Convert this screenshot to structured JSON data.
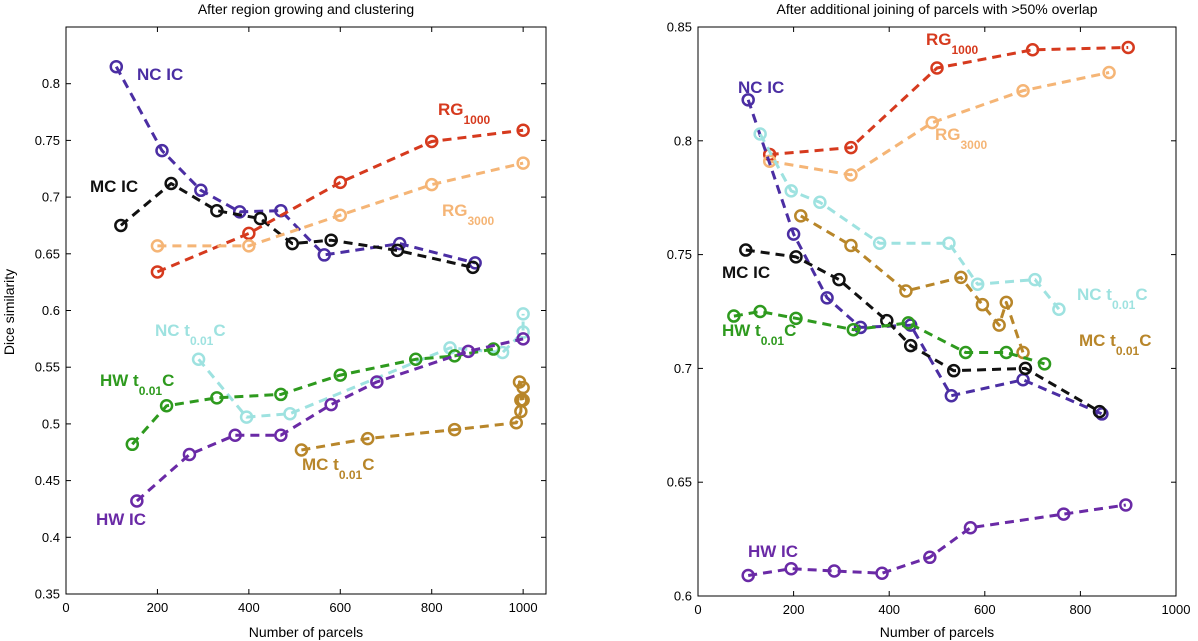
{
  "chart_data": [
    {
      "type": "line",
      "title": "After region growing and clustering",
      "xlabel": "Number of parcels",
      "ylabel": "Dice similarity",
      "xlim": [
        0,
        1050
      ],
      "ylim": [
        0.35,
        0.85
      ],
      "xticks": [
        0,
        200,
        400,
        600,
        800,
        1000
      ],
      "xtick_labels": [
        "0",
        "200",
        "400",
        "600",
        "800",
        "1000"
      ],
      "yticks": [
        0.35,
        0.4,
        0.45,
        0.5,
        0.55,
        0.6,
        0.65,
        0.7,
        0.75,
        0.8
      ],
      "ytick_labels": [
        "0.35",
        "0.4",
        "0.45",
        "0.5",
        "0.55",
        "0.6",
        "0.65",
        "0.7",
        "0.75",
        "0.8"
      ],
      "series": [
        {
          "name": "NC IC",
          "label_main": "NC IC",
          "label_sub": "",
          "label_tail": "",
          "color": "#4b2ea3",
          "x": [
            110,
            210,
            295,
            380,
            470,
            565,
            730,
            895
          ],
          "y": [
            0.815,
            0.741,
            0.706,
            0.687,
            0.688,
            0.649,
            0.659,
            0.642
          ]
        },
        {
          "name": "MC IC",
          "label_main": "MC IC",
          "label_sub": "",
          "label_tail": "",
          "color": "#111111",
          "x": [
            120,
            230,
            330,
            425,
            495,
            580,
            725,
            890
          ],
          "y": [
            0.675,
            0.712,
            0.688,
            0.681,
            0.659,
            0.662,
            0.653,
            0.638
          ]
        },
        {
          "name": "RG1000",
          "label_main": "RG",
          "label_sub": "1000",
          "label_tail": "",
          "color": "#d63a1e",
          "x": [
            200,
            400,
            600,
            800,
            1000
          ],
          "y": [
            0.634,
            0.668,
            0.713,
            0.749,
            0.759
          ]
        },
        {
          "name": "RG3000",
          "label_main": "RG",
          "label_sub": "3000",
          "label_tail": "",
          "color": "#f5b576",
          "x": [
            200,
            400,
            600,
            800,
            1000
          ],
          "y": [
            0.657,
            0.657,
            0.684,
            0.711,
            0.73
          ]
        },
        {
          "name": "NC t0.01C",
          "label_main": "NC t",
          "label_sub": "0.01",
          "label_tail": "C",
          "color": "#9ee2e0",
          "x": [
            290,
            395,
            490,
            840,
            955,
            1000,
            1000
          ],
          "y": [
            0.557,
            0.506,
            0.509,
            0.567,
            0.563,
            0.581,
            0.597
          ]
        },
        {
          "name": "HW t0.01C",
          "label_main": "HW t",
          "label_sub": "0.01",
          "label_tail": "C",
          "color": "#2e9a1e",
          "x": [
            145,
            220,
            330,
            470,
            600,
            765,
            850,
            935
          ],
          "y": [
            0.482,
            0.516,
            0.523,
            0.526,
            0.543,
            0.557,
            0.56,
            0.566
          ]
        },
        {
          "name": "HW IC",
          "label_main": "HW IC",
          "label_sub": "",
          "label_tail": "",
          "color": "#6a2aa6",
          "x": [
            155,
            270,
            370,
            470,
            580,
            680,
            880,
            1000
          ],
          "y": [
            0.432,
            0.473,
            0.49,
            0.49,
            0.517,
            0.537,
            0.564,
            0.575
          ]
        },
        {
          "name": "MC t0.01C",
          "label_main": "MC t",
          "label_sub": "0.01",
          "label_tail": "C",
          "color": "#b8862a",
          "x": [
            515,
            660,
            850,
            985,
            995,
            995,
            1000,
            992,
            1000
          ],
          "y": [
            0.477,
            0.487,
            0.495,
            0.501,
            0.511,
            0.521,
            0.532,
            0.537,
            0.521
          ]
        }
      ]
    },
    {
      "type": "line",
      "title": "After additional joining of parcels with >50% overlap",
      "xlabel": "Number of parcels",
      "ylabel": "",
      "xlim": [
        0,
        1000
      ],
      "ylim": [
        0.6,
        0.85
      ],
      "xticks": [
        0,
        200,
        400,
        600,
        800,
        1000
      ],
      "xtick_labels": [
        "0",
        "200",
        "400",
        "600",
        "800",
        "1000"
      ],
      "yticks": [
        0.6,
        0.65,
        0.7,
        0.75,
        0.8,
        0.85
      ],
      "ytick_labels": [
        "0.6",
        "0.65",
        "0.7",
        "0.75",
        "0.8",
        "0.85"
      ],
      "series": [
        {
          "name": "RG1000",
          "label_main": "RG",
          "label_sub": "1000",
          "label_tail": "",
          "color": "#d63a1e",
          "x": [
            150,
            320,
            500,
            700,
            900
          ],
          "y": [
            0.794,
            0.797,
            0.832,
            0.84,
            0.841
          ]
        },
        {
          "name": "RG3000",
          "label_main": "RG",
          "label_sub": "3000",
          "label_tail": "",
          "color": "#f5b576",
          "x": [
            150,
            320,
            490,
            680,
            860
          ],
          "y": [
            0.791,
            0.785,
            0.808,
            0.822,
            0.83
          ]
        },
        {
          "name": "NC IC",
          "label_main": "NC IC",
          "label_sub": "",
          "label_tail": "",
          "color": "#4b2ea3",
          "x": [
            105,
            200,
            270,
            340,
            445,
            530,
            680,
            845
          ],
          "y": [
            0.818,
            0.759,
            0.731,
            0.718,
            0.719,
            0.688,
            0.695,
            0.68
          ]
        },
        {
          "name": "NC t0.01C",
          "label_main": "NC t",
          "label_sub": "0.01",
          "label_tail": "C",
          "color": "#9ee2e0",
          "x": [
            130,
            195,
            255,
            380,
            525,
            585,
            705,
            755
          ],
          "y": [
            0.803,
            0.778,
            0.773,
            0.755,
            0.755,
            0.737,
            0.739,
            0.726
          ]
        },
        {
          "name": "MC IC",
          "label_main": "MC IC",
          "label_sub": "",
          "label_tail": "",
          "color": "#111111",
          "x": [
            100,
            205,
            295,
            395,
            445,
            535,
            685,
            840
          ],
          "y": [
            0.752,
            0.749,
            0.739,
            0.721,
            0.71,
            0.699,
            0.7,
            0.681
          ]
        },
        {
          "name": "MC t0.01C",
          "label_main": "MC t",
          "label_sub": "0.01",
          "label_tail": "C",
          "color": "#b8862a",
          "x": [
            215,
            320,
            435,
            550,
            595,
            630,
            645,
            680
          ],
          "y": [
            0.767,
            0.754,
            0.734,
            0.74,
            0.728,
            0.719,
            0.729,
            0.707
          ]
        },
        {
          "name": "HW t0.01C",
          "label_main": "HW t",
          "label_sub": "0.01",
          "label_tail": "C",
          "color": "#2e9a1e",
          "x": [
            75,
            130,
            205,
            325,
            440,
            560,
            645,
            725
          ],
          "y": [
            0.723,
            0.725,
            0.722,
            0.717,
            0.72,
            0.707,
            0.707,
            0.702
          ]
        },
        {
          "name": "HW IC",
          "label_main": "HW IC",
          "label_sub": "",
          "label_tail": "",
          "color": "#6a2aa6",
          "x": [
            105,
            195,
            285,
            385,
            485,
            570,
            765,
            895
          ],
          "y": [
            0.609,
            0.612,
            0.611,
            0.61,
            0.617,
            0.63,
            0.636,
            0.64
          ]
        }
      ]
    }
  ]
}
